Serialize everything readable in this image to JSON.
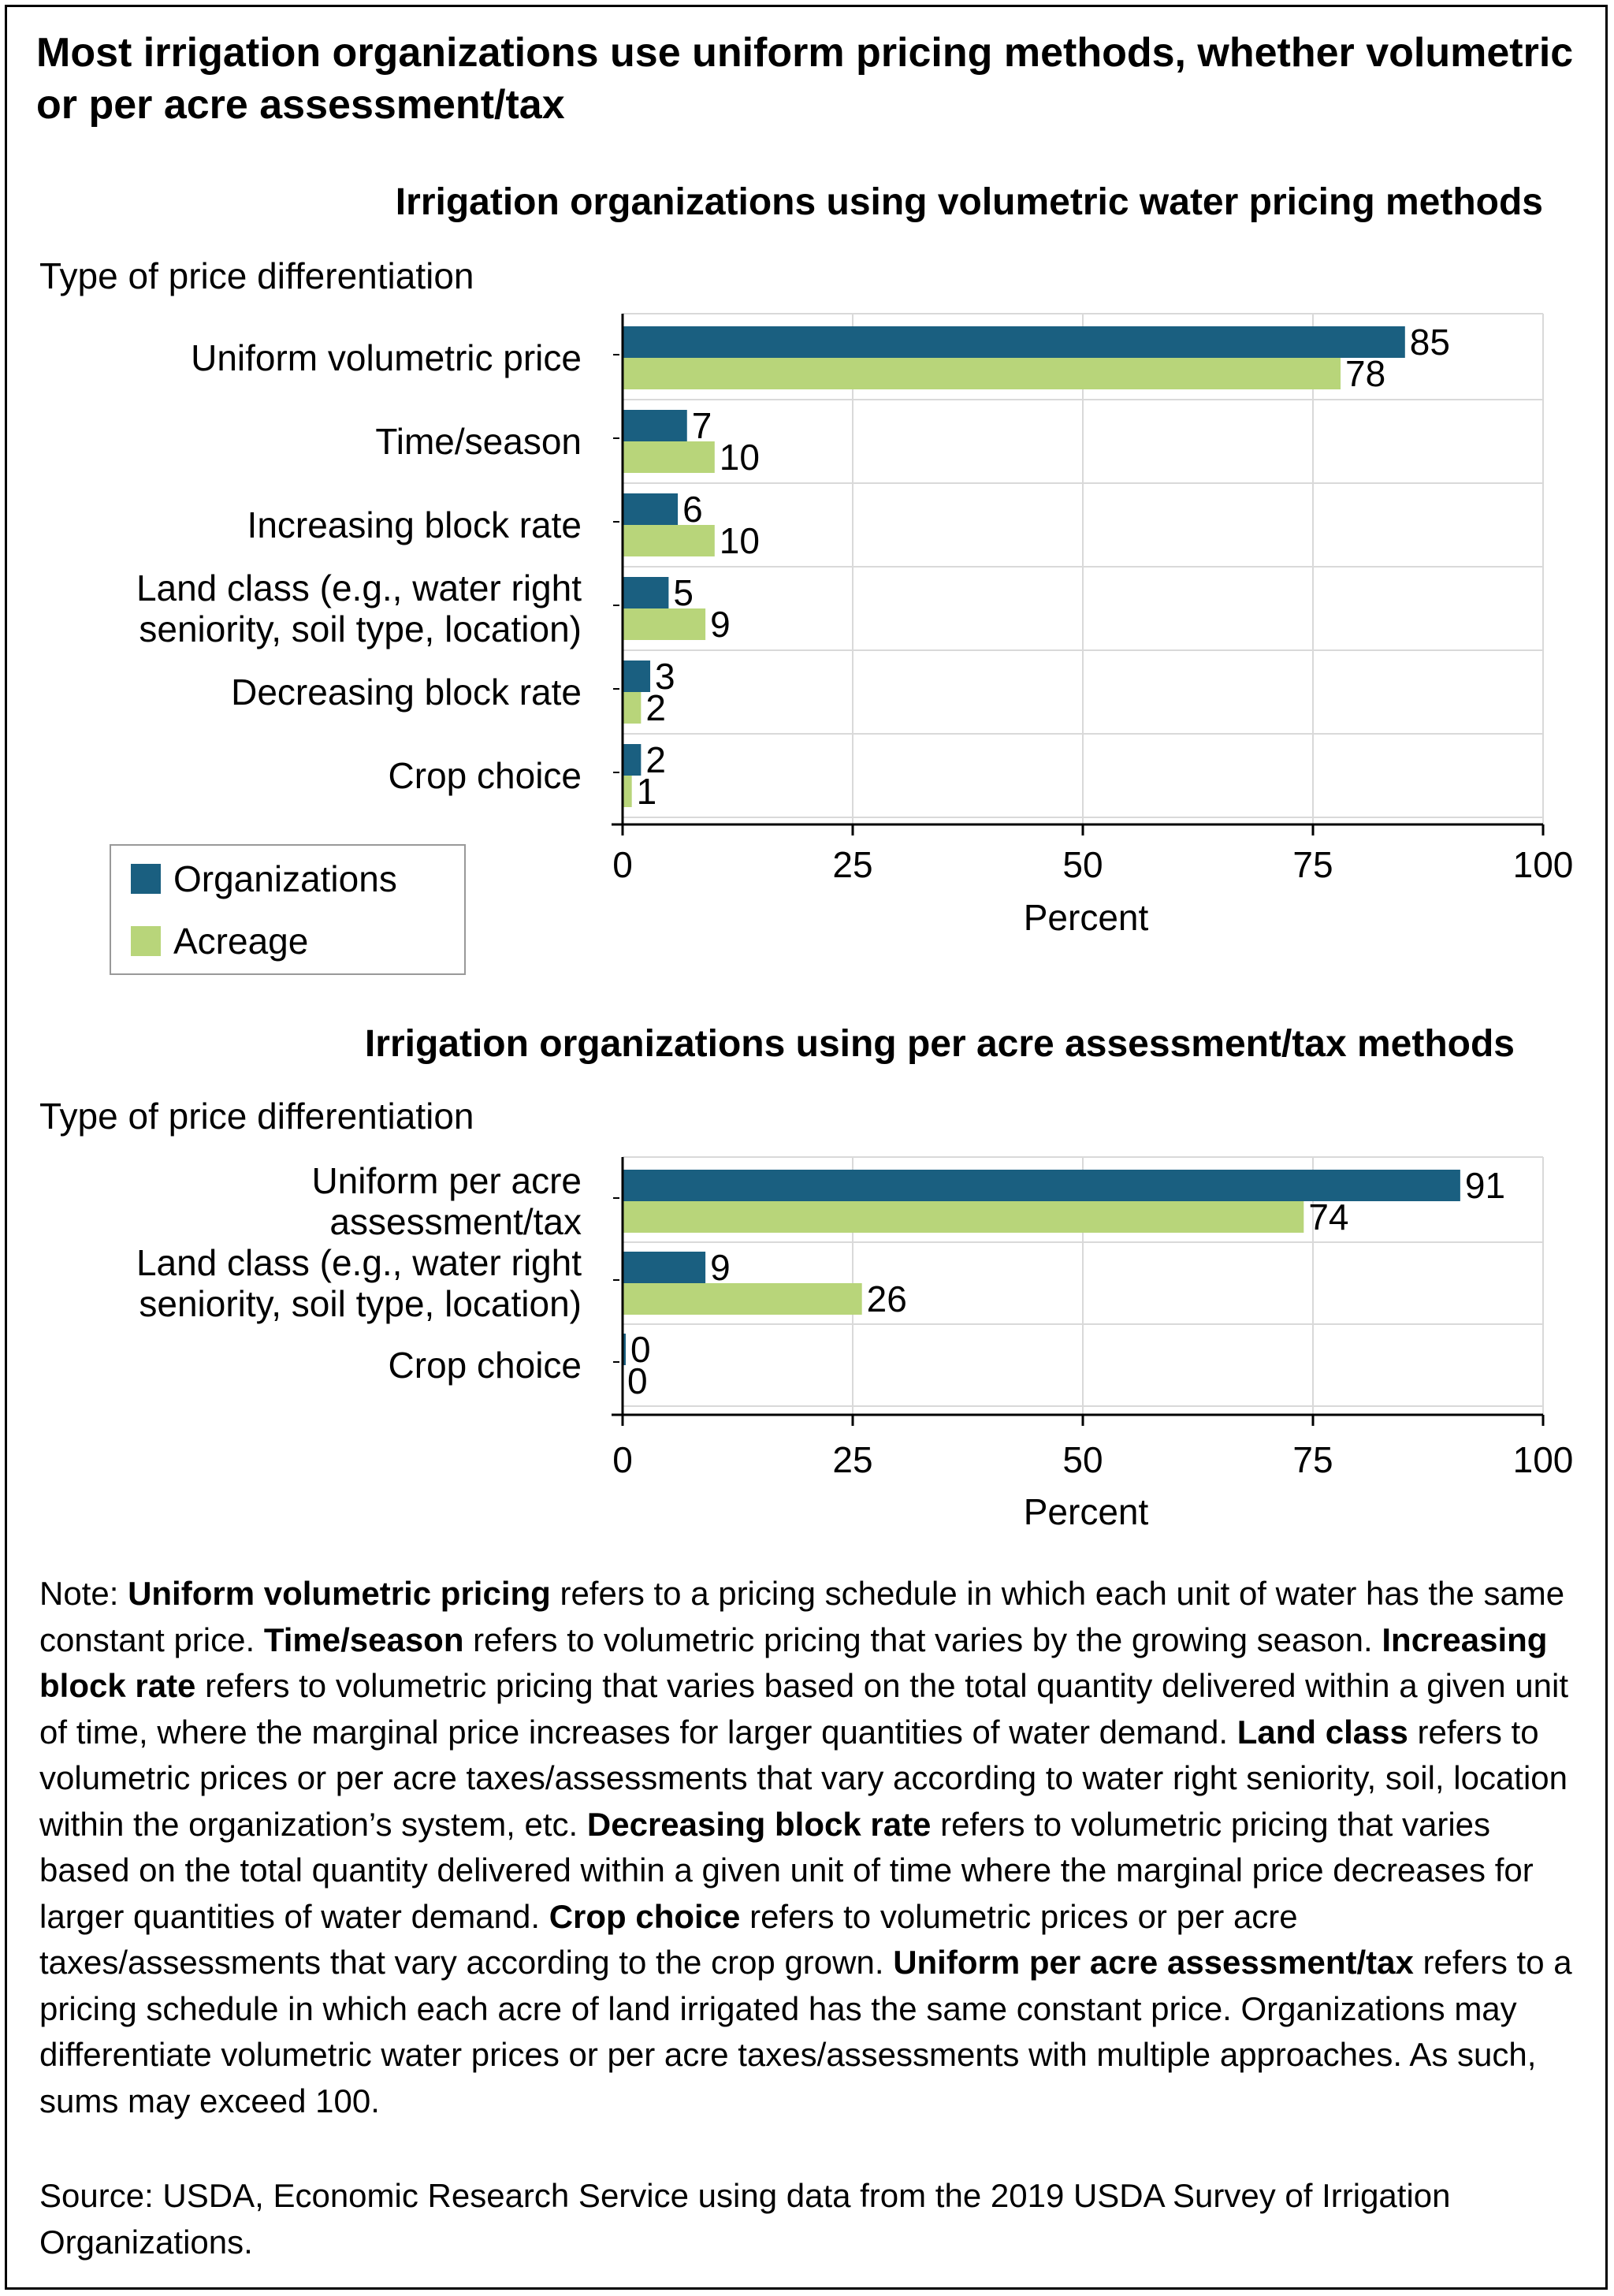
{
  "title": "Most irrigation organizations use uniform pricing methods, whether volumetric or per acre assessment/tax",
  "colors": {
    "organizations": "#1a5f80",
    "acreage": "#b8d57a",
    "grid": "#d9d9d9",
    "axis": "#000000"
  },
  "legend": {
    "organizations": "Organizations",
    "acreage": "Acreage"
  },
  "chart_data": [
    {
      "type": "bar",
      "orientation": "horizontal",
      "title": "Irrigation organizations using volumetric water pricing methods",
      "ylabel": "Type of price differentiation",
      "xlabel": "Percent",
      "xlim": [
        0,
        100
      ],
      "xticks": [
        0,
        25,
        50,
        75,
        100
      ],
      "grid": true,
      "legend_position": "bottom-left",
      "categories": [
        [
          "Uniform volumetric price"
        ],
        [
          "Time/season"
        ],
        [
          "Increasing block rate"
        ],
        [
          "Land class (e.g., water right",
          "seniority, soil type, location)"
        ],
        [
          "Decreasing block rate"
        ],
        [
          "Crop choice"
        ]
      ],
      "series": [
        {
          "name": "Organizations",
          "values": [
            85,
            7,
            6,
            5,
            3,
            2
          ]
        },
        {
          "name": "Acreage",
          "values": [
            78,
            10,
            10,
            9,
            2,
            1
          ]
        }
      ]
    },
    {
      "type": "bar",
      "orientation": "horizontal",
      "title": "Irrigation organizations using per acre assessment/tax methods",
      "ylabel": "Type of price differentiation",
      "xlabel": "Percent",
      "xlim": [
        0,
        100
      ],
      "xticks": [
        0,
        25,
        50,
        75,
        100
      ],
      "grid": true,
      "categories": [
        [
          "Uniform per acre",
          "assessment/tax"
        ],
        [
          "Land class (e.g., water right",
          "seniority, soil type, location)"
        ],
        [
          "Crop choice"
        ]
      ],
      "series": [
        {
          "name": "Organizations",
          "values": [
            91,
            9,
            0
          ]
        },
        {
          "name": "Acreage",
          "values": [
            74,
            26,
            0
          ]
        }
      ]
    }
  ],
  "note": [
    {
      "text": "Note: "
    },
    {
      "text": "Uniform volumetric pricing",
      "bold": true
    },
    {
      "text": " refers to a pricing schedule in which each unit of water has the same constant price. "
    },
    {
      "text": "Time/season",
      "bold": true
    },
    {
      "text": " refers to volumetric pricing that varies by the growing season. "
    },
    {
      "text": "Increasing block rate",
      "bold": true
    },
    {
      "text": " refers to volumetric pricing that varies based on the total quantity delivered within a given unit of time, where the marginal price increases for larger quantities of water demand. "
    },
    {
      "text": "Land class",
      "bold": true
    },
    {
      "text": " refers to volumetric prices or per acre taxes/assessments that vary according to water right seniority, soil, location within the organization’s system, etc. "
    },
    {
      "text": "Decreasing block rate",
      "bold": true
    },
    {
      "text": " refers to volumetric pricing that varies based on the total quantity delivered within a given unit of time where the marginal price decreases for larger quantities of water demand. "
    },
    {
      "text": "Crop choice",
      "bold": true
    },
    {
      "text": " refers to volumetric prices or per acre taxes/assessments that vary according to the crop grown. "
    },
    {
      "text": "Uniform per acre assessment/tax",
      "bold": true
    },
    {
      "text": " refers to a pricing schedule in which each acre of land irrigated has the same constant price. Organizations may differentiate volumetric water prices or per acre taxes/assessments with multiple approaches. As such, sums may exceed 100."
    }
  ],
  "source": "Source: USDA, Economic Research Service using data from the 2019 USDA Survey of Irrigation Organizations."
}
